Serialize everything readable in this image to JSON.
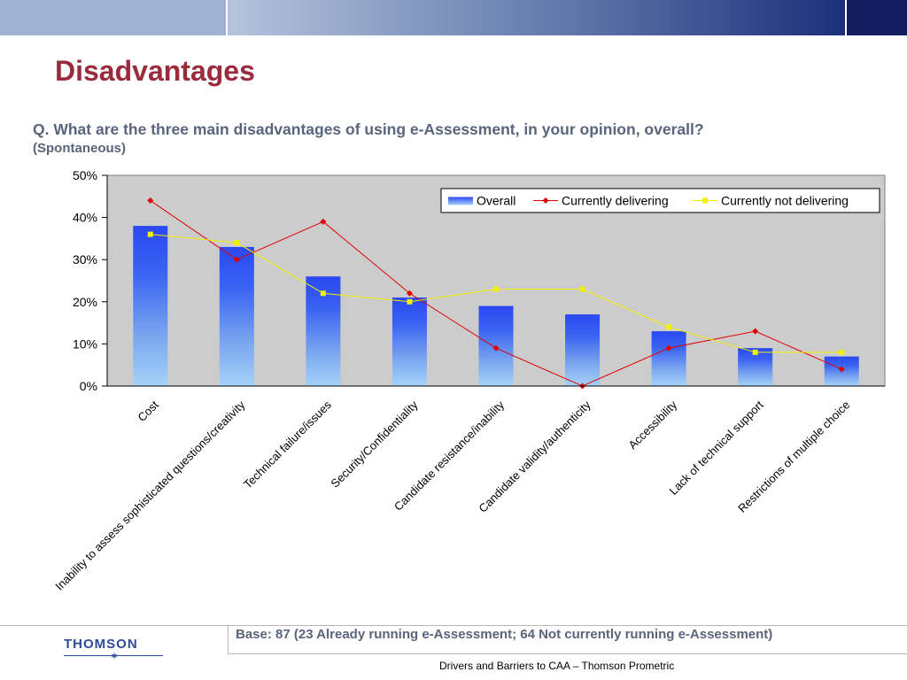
{
  "header": {
    "title": "Disadvantages"
  },
  "question": {
    "text": "Q. What are the three main disadvantages of using e-Assessment, in your opinion, overall?",
    "sub": "(Spontaneous)"
  },
  "chart_data": {
    "type": "bar",
    "categories": [
      "Cost",
      "Inability to assess sophisticated questions/creativity",
      "Technical failure/issues",
      "Security/Confidentiality",
      "Candidate resistance/inability",
      "Candidate validity/authenticity",
      "Accessibility",
      "Lack of technical support",
      "Restrictions of multiple choice"
    ],
    "series": [
      {
        "name": "Overall",
        "type": "bar",
        "values": [
          38,
          33,
          26,
          21,
          19,
          17,
          13,
          9,
          7
        ],
        "color": "#2b4cf0"
      },
      {
        "name": "Currently delivering",
        "type": "line",
        "values": [
          44,
          30,
          39,
          22,
          9,
          0,
          9,
          13,
          4
        ],
        "color": "#e00000"
      },
      {
        "name": "Currently not delivering",
        "type": "line",
        "values": [
          36,
          34,
          22,
          20,
          23,
          23,
          14,
          8,
          8
        ],
        "color": "#f2f200"
      }
    ],
    "y_ticks": [
      "0%",
      "10%",
      "20%",
      "30%",
      "40%",
      "50%"
    ],
    "ylim": [
      0,
      50
    ],
    "grid": false,
    "legend": "top-right",
    "plot_background": "#cccccc"
  },
  "footer": {
    "base": "Base: 87 (23 Already running e-Assessment; 64 Not currently running e-Assessment)",
    "logo": "THOMSON",
    "caption": "Drivers and Barriers to CAA – Thomson Prometric"
  }
}
